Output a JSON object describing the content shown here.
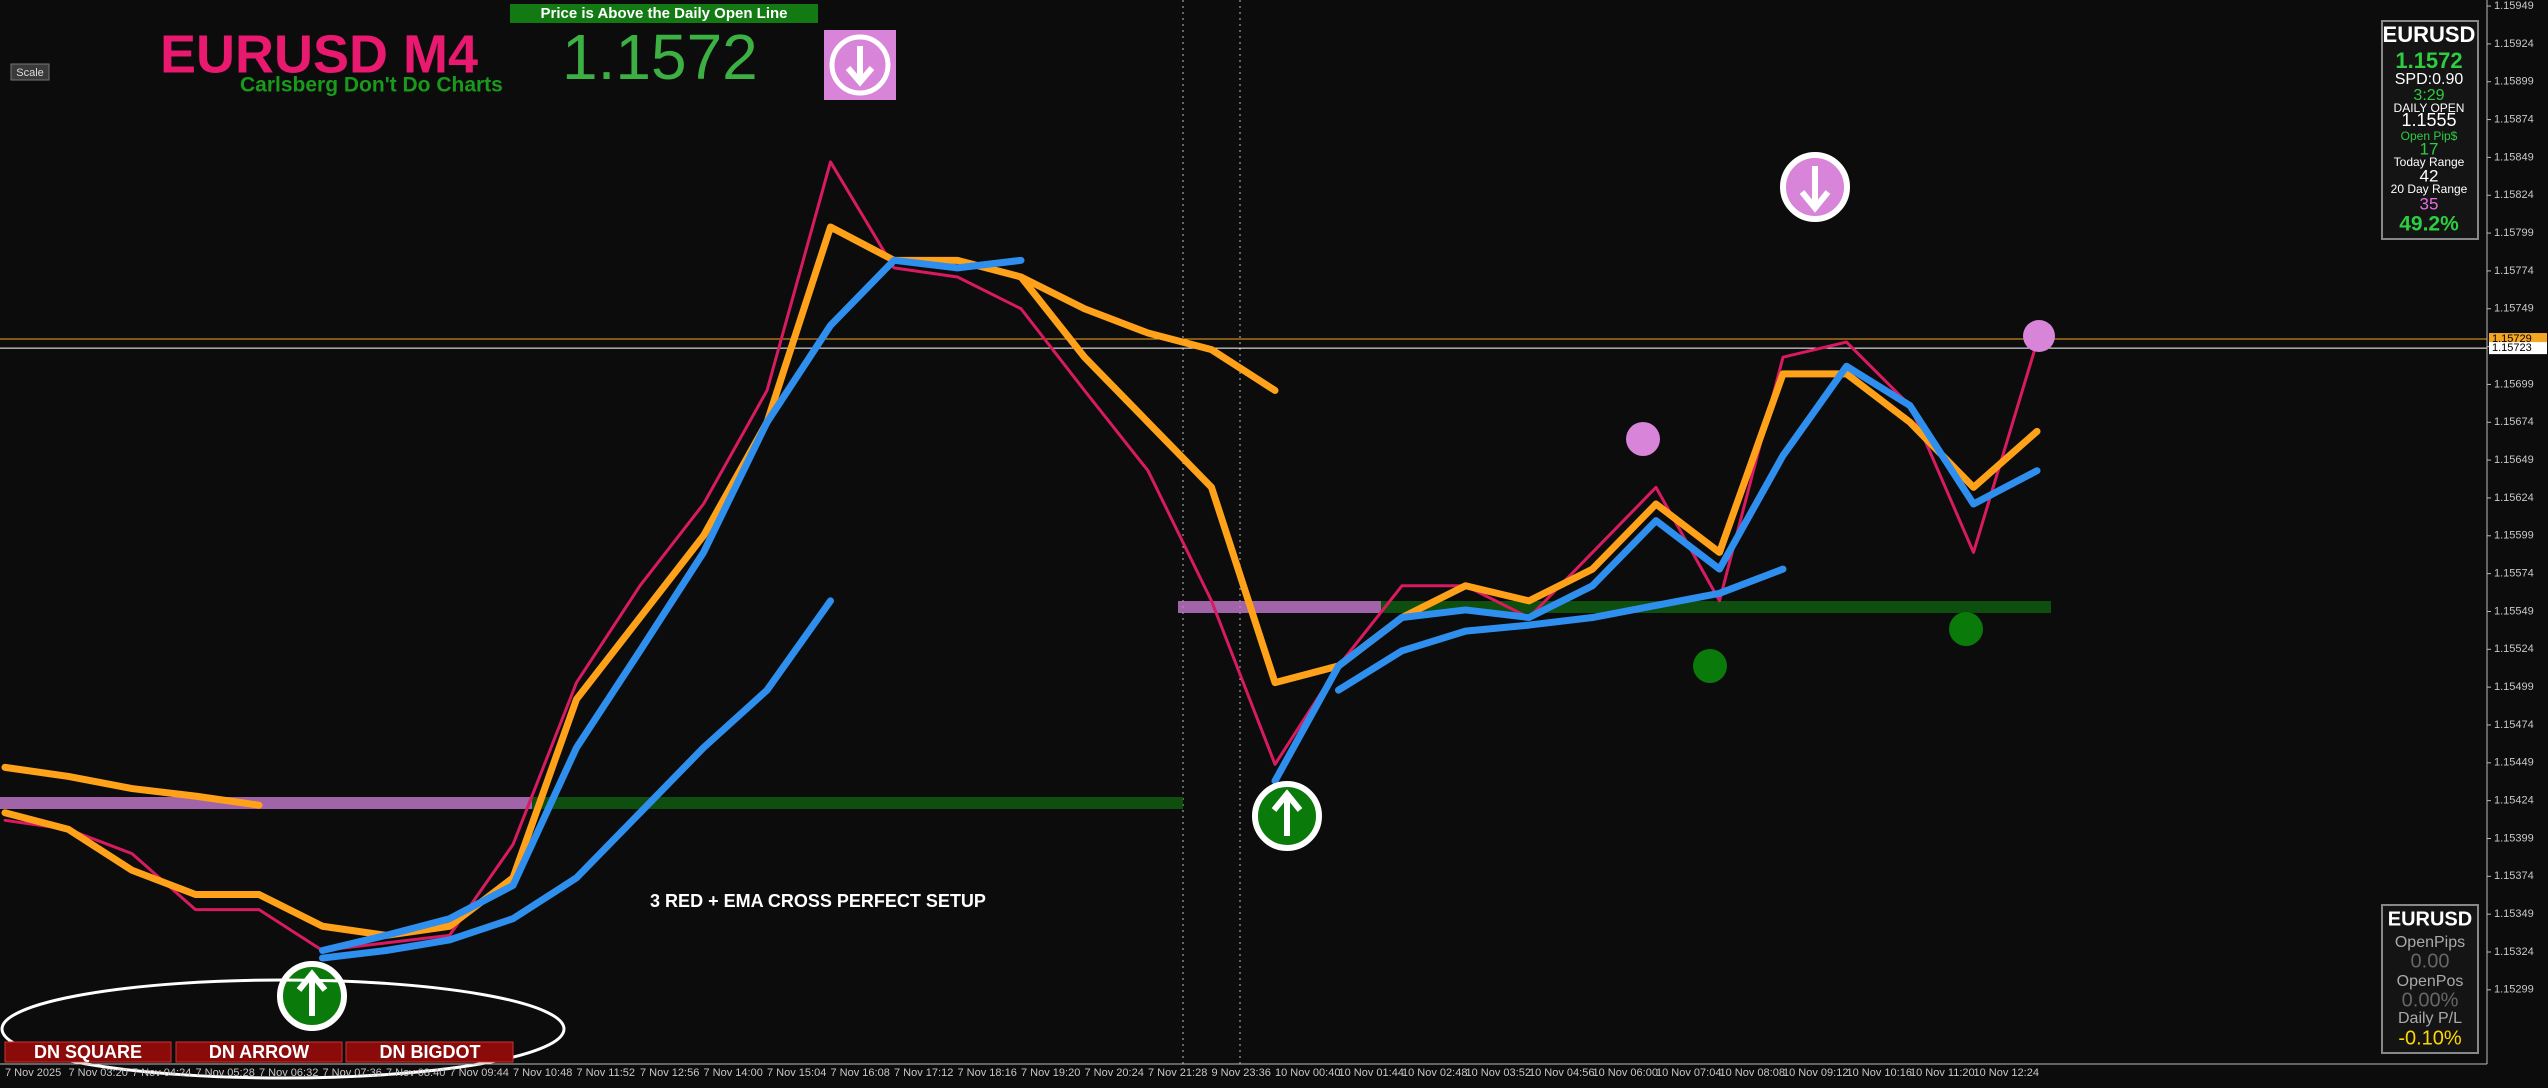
{
  "chart_data": {
    "type": "line",
    "categories": [
      "7 Nov 2025",
      "7 Nov 03:20",
      "7 Nov 04:24",
      "7 Nov 05:28",
      "7 Nov 06:32",
      "7 Nov 07:36",
      "7 Nov 08:40",
      "7 Nov 09:44",
      "7 Nov 10:48",
      "7 Nov 11:52",
      "7 Nov 12:56",
      "7 Nov 14:00",
      "7 Nov 15:04",
      "7 Nov 16:08",
      "7 Nov 17:12",
      "7 Nov 18:16",
      "7 Nov 19:20",
      "7 Nov 20:24",
      "7 Nov 21:28",
      "9 Nov 23:36",
      "10 Nov 00:40",
      "10 Nov 01:44",
      "10 Nov 02:48",
      "10 Nov 03:52",
      "10 Nov 04:56",
      "10 Nov 06:00",
      "10 Nov 07:04",
      "10 Nov 08:08",
      "10 Nov 09:12",
      "10 Nov 10:16",
      "10 Nov 11:20",
      "10 Nov 12:24",
      null
    ],
    "series": [
      {
        "color": "#d81b60",
        "values": [
          1.15411,
          1.15405,
          1.15389,
          1.15352,
          1.15352,
          1.15325,
          1.1533,
          1.15335,
          1.15395,
          1.15502,
          1.15566,
          1.1562,
          1.15695,
          1.15846,
          1.15776,
          1.1577,
          1.15749,
          1.15695,
          1.15642,
          1.15556,
          1.15448,
          1.15513,
          1.15566,
          1.15566,
          1.15545,
          1.15588,
          1.15631,
          1.15556,
          1.15717,
          1.15727,
          1.15685,
          1.15588,
          1.15727
        ]
      },
      {
        "color": "#ffa21a",
        "values": [
          1.15416,
          1.15405,
          1.15378,
          1.15362,
          1.15362,
          1.15341,
          1.15335,
          1.15341,
          1.15373,
          1.15491,
          1.15545,
          1.15599,
          1.15674,
          1.15803,
          1.15781,
          1.15781,
          1.1577,
          1.15717,
          1.15674,
          1.15631,
          1.15502,
          1.15513,
          1.15545,
          1.15566,
          1.15556,
          1.15577,
          1.1562,
          1.15588,
          1.15706,
          1.15706,
          1.15674,
          1.15631,
          1.15668
        ]
      },
      {
        "color": "#ffa21a",
        "values": [
          1.15446,
          1.1544,
          1.15432,
          1.15427,
          1.15421,
          null,
          null,
          null,
          null,
          null,
          null,
          null,
          null,
          null,
          null,
          null,
          1.1577,
          1.15749,
          1.15733,
          1.15722,
          1.15695,
          null,
          null,
          null,
          null,
          null,
          null,
          null,
          null,
          null,
          null,
          null,
          null
        ]
      },
      {
        "color": "#2f8fef",
        "values": [
          null,
          null,
          null,
          null,
          null,
          1.15325,
          1.15335,
          1.15346,
          1.15368,
          1.15459,
          1.15523,
          1.15588,
          1.15674,
          1.15738,
          1.15781,
          1.15776,
          1.15781,
          null,
          null,
          null,
          1.15437,
          1.15513,
          1.15545,
          1.1555,
          1.15545,
          1.15566,
          1.15609,
          1.15577,
          1.15652,
          1.15711,
          1.15685,
          1.1562,
          1.15642
        ]
      },
      {
        "color": "#2f8fef",
        "values": [
          null,
          null,
          null,
          null,
          null,
          1.1532,
          1.15325,
          1.15332,
          1.15346,
          1.15373,
          1.15416,
          1.15459,
          1.15497,
          1.15556,
          null,
          null,
          null,
          null,
          null,
          null,
          null,
          1.15497,
          1.15523,
          1.15536,
          1.1554,
          1.15545,
          1.15553,
          1.15561,
          1.15577,
          null,
          null,
          null,
          null
        ]
      }
    ],
    "ylim": [
      1.1525,
      1.15953
    ],
    "yticks": [
      1.15949,
      1.15924,
      1.15899,
      1.15874,
      1.15849,
      1.15824,
      1.15799,
      1.15774,
      1.15749,
      1.15724,
      1.15699,
      1.15674,
      1.15649,
      1.15624,
      1.15599,
      1.15574,
      1.15549,
      1.15524,
      1.15499,
      1.15474,
      1.15449,
      1.15424,
      1.15399,
      1.15374,
      1.15349,
      1.15324,
      1.15299
    ],
    "price_lines": [
      {
        "value": 1.15729,
        "color": "#f5a623"
      },
      {
        "value": 1.15723,
        "color": "#ffffff"
      }
    ],
    "grid": false
  },
  "overlay": {
    "banner": "Price is Above the Daily Open Line",
    "symbol_title": "EURUSD M4",
    "subtitle": "Carlsberg Don't Do Charts",
    "big_price": "1.1572",
    "scale": "Scale",
    "setup_note": "3 RED + EMA CROSS PERFECT SETUP",
    "buttons": [
      "DN SQUARE",
      "DN ARROW",
      "DN BIGDOT"
    ],
    "info_panel": [
      "EURUSD",
      "1.1572",
      "SPD:0.90",
      "3:29",
      "DAILY OPEN",
      "1.1555",
      "Open Pip$",
      "17",
      "Today Range",
      "42",
      "20 Day Range",
      "35",
      "49.2%"
    ],
    "pl_panel": [
      "EURUSD",
      "OpenPips",
      "0.00",
      "OpenPos",
      "0.00%",
      "Daily P/L",
      "-0.10%"
    ]
  }
}
